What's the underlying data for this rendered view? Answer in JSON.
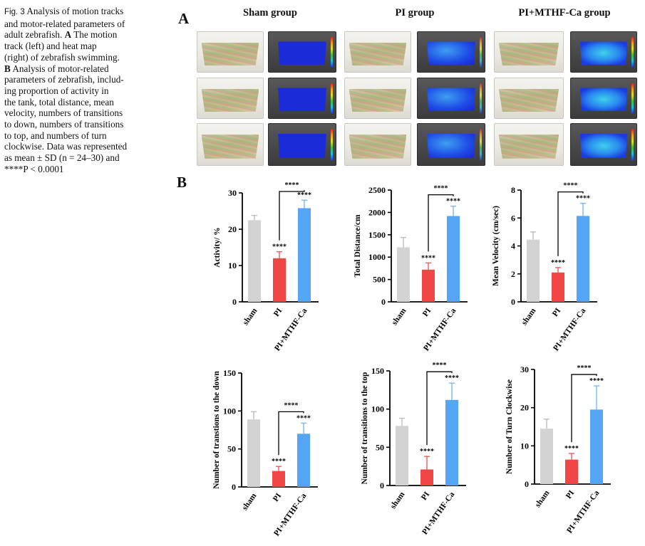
{
  "caption": {
    "fig_label": "Fig. 3",
    "line1": "Analysis of motion tracks",
    "line2": "and motor-related parameters of",
    "line3": "adult zebrafish.",
    "a_letter": "A",
    "line3b": "The motion",
    "line4": "track (left) and heat map",
    "line5": "(right) of zebrafish swimming.",
    "b_letter": "B",
    "line6b": "Analysis of motor-related",
    "line7": "parameters of zebrafish, includ-",
    "line8": "ing proportion of activity in",
    "line9": "the tank, total distance, mean",
    "line10": "velocity, numbers of transitions",
    "line11": "to down, numbers of transitions",
    "line12": "to top, and numbers of turn",
    "line13": "clockwise. Data was represented",
    "line14": "as mean ± SD (n = 24–30) and",
    "line15": "****P < 0.0001"
  },
  "panelA": {
    "letter": "A",
    "groups": [
      "Sham group",
      "PI group",
      "PI+MTHF-Ca group"
    ]
  },
  "panelB": {
    "letter": "B"
  },
  "colors": {
    "sham": "#d3d3d3",
    "pi": "#f04646",
    "mthf": "#55a5f5",
    "sham_err": "#bdbdbd",
    "pi_err": "#e85a5a",
    "mthf_err": "#7ab8f2"
  },
  "chart_data": [
    {
      "type": "bar",
      "ylabel": "Activity/ %",
      "categories": [
        "sham",
        "PI",
        "PI+MTHF-Ca"
      ],
      "values": [
        22.5,
        12,
        25.8
      ],
      "errors": [
        1.3,
        1.8,
        2.2
      ],
      "ylim": [
        0,
        30
      ],
      "yticks": [
        0,
        10,
        20,
        30
      ],
      "sig_bar": "****",
      "sig_pi": "****",
      "sig_mthf": "****"
    },
    {
      "type": "bar",
      "ylabel": "Total Distance/cm",
      "categories": [
        "sham",
        "PI",
        "PI+MTHF-Ca"
      ],
      "values": [
        1220,
        720,
        1920
      ],
      "errors": [
        220,
        150,
        220
      ],
      "ylim": [
        0,
        2500
      ],
      "yticks": [
        0,
        500,
        1000,
        1500,
        2000,
        2500
      ],
      "sig_bar": "****",
      "sig_pi": "****",
      "sig_mthf": "****"
    },
    {
      "type": "bar",
      "ylabel": "Mean Velocity (cm/sec)",
      "categories": [
        "sham",
        "PI",
        "PI+MTHF-Ca"
      ],
      "values": [
        4.45,
        2.1,
        6.15
      ],
      "errors": [
        0.55,
        0.35,
        0.9
      ],
      "ylim": [
        0,
        8
      ],
      "yticks": [
        0,
        2,
        4,
        6,
        8
      ],
      "sig_bar": "****",
      "sig_pi": "****",
      "sig_mthf": "****"
    },
    {
      "type": "bar",
      "ylabel": "Number of transtions to the down",
      "categories": [
        "sham",
        "PI",
        "PI+MTHF-Ca"
      ],
      "values": [
        89,
        21,
        70
      ],
      "errors": [
        10,
        6,
        14
      ],
      "ylim": [
        0,
        150
      ],
      "yticks": [
        0,
        50,
        100,
        150
      ],
      "sig_bar": "****",
      "sig_pi": "****",
      "sig_mthf": "****"
    },
    {
      "type": "bar",
      "ylabel": "Number of transitions to the top",
      "categories": [
        "sham",
        "PI",
        "PI+MTHF-Ca"
      ],
      "values": [
        78,
        21,
        112
      ],
      "errors": [
        10,
        17,
        22
      ],
      "ylim": [
        0,
        150
      ],
      "yticks": [
        0,
        50,
        100,
        150
      ],
      "sig_bar": "****",
      "sig_pi": "****",
      "sig_mthf": "****"
    },
    {
      "type": "bar",
      "ylabel": "Number of Turn Clockwise",
      "categories": [
        "sham",
        "PI",
        "PI+MTHF-Ca"
      ],
      "values": [
        14.5,
        6.4,
        19.5
      ],
      "errors": [
        2.5,
        1.6,
        6.2
      ],
      "ylim": [
        0,
        30
      ],
      "yticks": [
        0,
        10,
        20,
        30
      ],
      "sig_bar": "****",
      "sig_pi": "****",
      "sig_mthf": "****"
    }
  ]
}
